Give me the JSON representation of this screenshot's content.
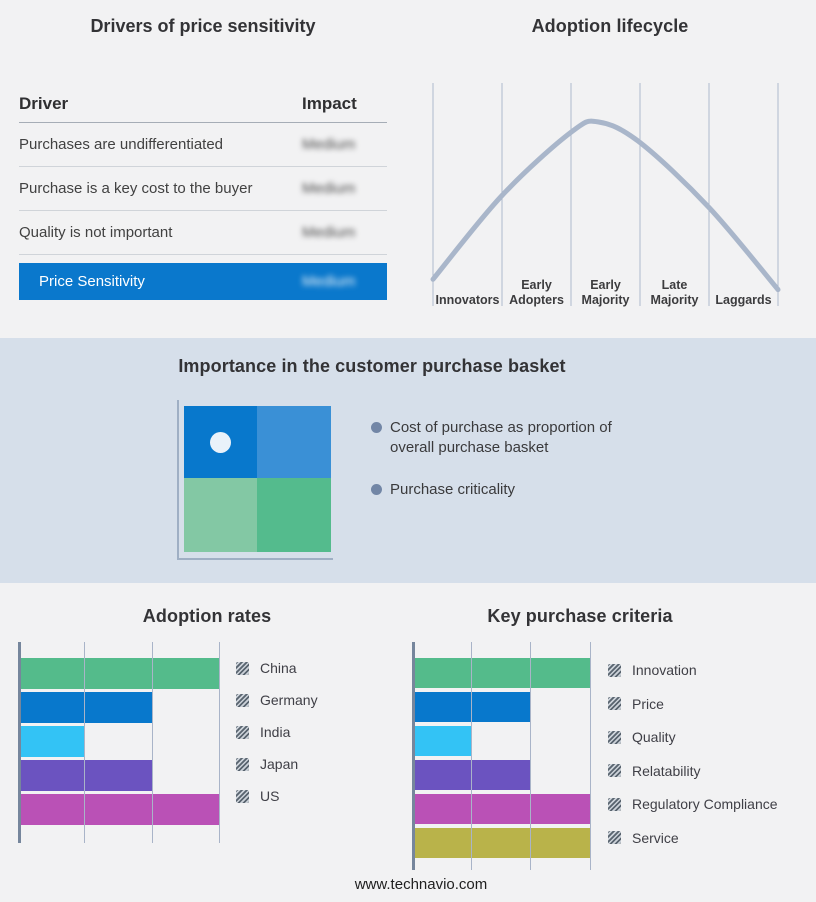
{
  "page": {
    "background": "#f2f2f3",
    "band_background": "#d6dfea",
    "accent_blue": "#0a78cc",
    "footer": "www.technavio.com"
  },
  "drivers_panel": {
    "title": "Drivers of price sensitivity",
    "header": {
      "driver": "Driver",
      "impact": "Impact"
    },
    "rows": [
      {
        "driver": "Purchases are undifferentiated",
        "impact": "Medium",
        "impact_blurred": true
      },
      {
        "driver": "Purchase is a key cost to the buyer",
        "impact": "Medium",
        "impact_blurred": true
      },
      {
        "driver": "Quality is not important",
        "impact": "Medium",
        "impact_blurred": true
      }
    ],
    "summary": {
      "label": "Price Sensitivity",
      "impact": "Medium",
      "impact_blurred": true,
      "background": "#0a78cc"
    }
  },
  "lifecycle_panel": {
    "title": "Adoption lifecycle"
  },
  "basket_panel": {
    "title": "Importance in the customer purchase basket",
    "bullets": [
      "Cost of purchase as proportion of overall purchase basket",
      "Purchase criticality"
    ]
  },
  "rates_panel": {
    "title": "Adoption rates"
  },
  "criteria_panel": {
    "title": "Key purchase criteria"
  },
  "chart_data": [
    {
      "id": "adoption-lifecycle",
      "type": "line",
      "title": "Adoption lifecycle",
      "x_categories": [
        "Innovators",
        "Early Adopters",
        "Early Majority",
        "Late Majority",
        "Laggards"
      ],
      "curve_points_norm": [
        [
          0,
          0.08
        ],
        [
          0.2,
          0.57
        ],
        [
          0.4,
          0.94
        ],
        [
          0.48,
          1.0
        ],
        [
          0.6,
          0.88
        ],
        [
          0.8,
          0.5
        ],
        [
          1.0,
          0.02
        ]
      ],
      "curve_color": "#a9b6ca",
      "gridline_color": "#aeb9cc",
      "grid": true,
      "legend": "none",
      "notes": "Bell curve over five adopter segments; y-axis unlabeled; peak within Early Majority"
    },
    {
      "id": "adoption-rates",
      "type": "bar",
      "orientation": "horizontal",
      "title": "Adoption rates",
      "categories": [
        "China",
        "Germany",
        "India",
        "Japan",
        "US"
      ],
      "values": [
        3,
        2,
        1,
        2,
        3
      ],
      "xlim": [
        0,
        3
      ],
      "value_units": "relative (unlabeled axis, read against 3 gridlines)",
      "colors": [
        "#54bb8b",
        "#0878cc",
        "#33c3f5",
        "#6b53c0",
        "#ba51b6"
      ],
      "grid": true,
      "legend_position": "right",
      "legend_swatch_style": "hatched"
    },
    {
      "id": "key-purchase-criteria",
      "type": "bar",
      "orientation": "horizontal",
      "title": "Key purchase criteria",
      "categories": [
        "Innovation",
        "Price",
        "Quality",
        "Relatability",
        "Regulatory Compliance",
        "Service"
      ],
      "values": [
        3,
        2,
        1,
        2,
        3,
        3
      ],
      "xlim": [
        0,
        3
      ],
      "value_units": "relative (unlabeled axis, read against 3 gridlines)",
      "colors": [
        "#54bb8b",
        "#0878cc",
        "#33c3f5",
        "#6b53c0",
        "#ba51b6",
        "#b9b34a"
      ],
      "grid": true,
      "legend_position": "right",
      "legend_swatch_style": "hatched"
    },
    {
      "id": "purchase-basket-quadrant",
      "type": "heatmap",
      "title": "Importance in the customer purchase basket",
      "grid_colors": [
        [
          "#0878cc",
          "#3a90d6"
        ],
        [
          "#83c8a4",
          "#54bb8d"
        ]
      ],
      "marker": {
        "quadrant": "top-left",
        "x_frac": 0.25,
        "y_frac": 0.26,
        "color": "#e9f2fa"
      },
      "axis_color": "#9fafc4",
      "notes": "2x2 quadrant with unlabeled axes and a white dot marker in the upper-left quadrant"
    }
  ]
}
